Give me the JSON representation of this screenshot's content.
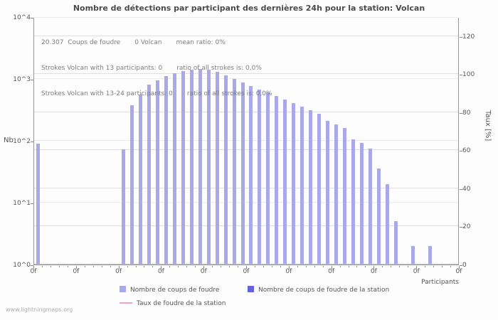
{
  "title": "Nombre de détections par participant des dernières 24h pour la station: Volcan",
  "watermark": "www.lightningmaps.org",
  "annotations": {
    "line1": "20.307  Coups de foudre       0 Volcan       mean ratio: 0%",
    "line2": "Strokes Volcan with 13 participants: 0       ratio of all strokes is: 0,0%",
    "line3": "Strokes Volcan with 13-24 participants: 0       ratio of all strokes is: 0,0%"
  },
  "axes": {
    "left_title": "Nb",
    "right_title": "Taux [%]",
    "x_title": "Participants",
    "left_ticks": [
      "10^4",
      "10^3",
      "10^2",
      "10^1",
      "10^0"
    ],
    "right_ticks": [
      "120",
      "100",
      "80",
      "60",
      "40",
      "20",
      "0"
    ],
    "x_ticks": [
      "0f",
      "0f",
      "0f",
      "0f",
      "0f",
      "0f",
      "0f",
      "0f",
      "0f",
      "0f",
      "0f"
    ]
  },
  "legend": [
    {
      "label": "Nombre de coups de foudre",
      "color": "#a9a9ea",
      "type": "box"
    },
    {
      "label": "Nombre de coups de foudre de la station",
      "color": "#6464d8",
      "type": "box"
    },
    {
      "label": "Taux de foudre de la station",
      "color": "#f2a0d2",
      "type": "line"
    }
  ],
  "chart_data": {
    "type": "bar",
    "title": "Nombre de détections par participant des dernières 24h pour la station: Volcan",
    "xlabel": "Participants",
    "ylabel": "Nb",
    "y2label": "Taux [%]",
    "y_scale": "log",
    "ylim": [
      1,
      10000
    ],
    "y2lim": [
      0,
      130
    ],
    "y2_ticks": [
      0,
      20,
      40,
      60,
      80,
      100,
      120
    ],
    "grid": true,
    "legend_position": "bottom",
    "total_strokes": 20307,
    "station_strokes": 0,
    "mean_ratio_percent": 0,
    "values": [
      90,
      0,
      0,
      0,
      0,
      0,
      0,
      0,
      0,
      0,
      72,
      380,
      560,
      800,
      950,
      1100,
      1250,
      1350,
      1420,
      1450,
      1400,
      1300,
      1150,
      1000,
      880,
      770,
      680,
      600,
      530,
      470,
      410,
      360,
      310,
      270,
      210,
      185,
      160,
      105,
      92,
      75,
      36,
      20,
      5,
      0,
      2,
      0,
      2,
      0,
      0,
      0
    ],
    "station_values_all_zero": true,
    "station_rate_percent": 0
  }
}
